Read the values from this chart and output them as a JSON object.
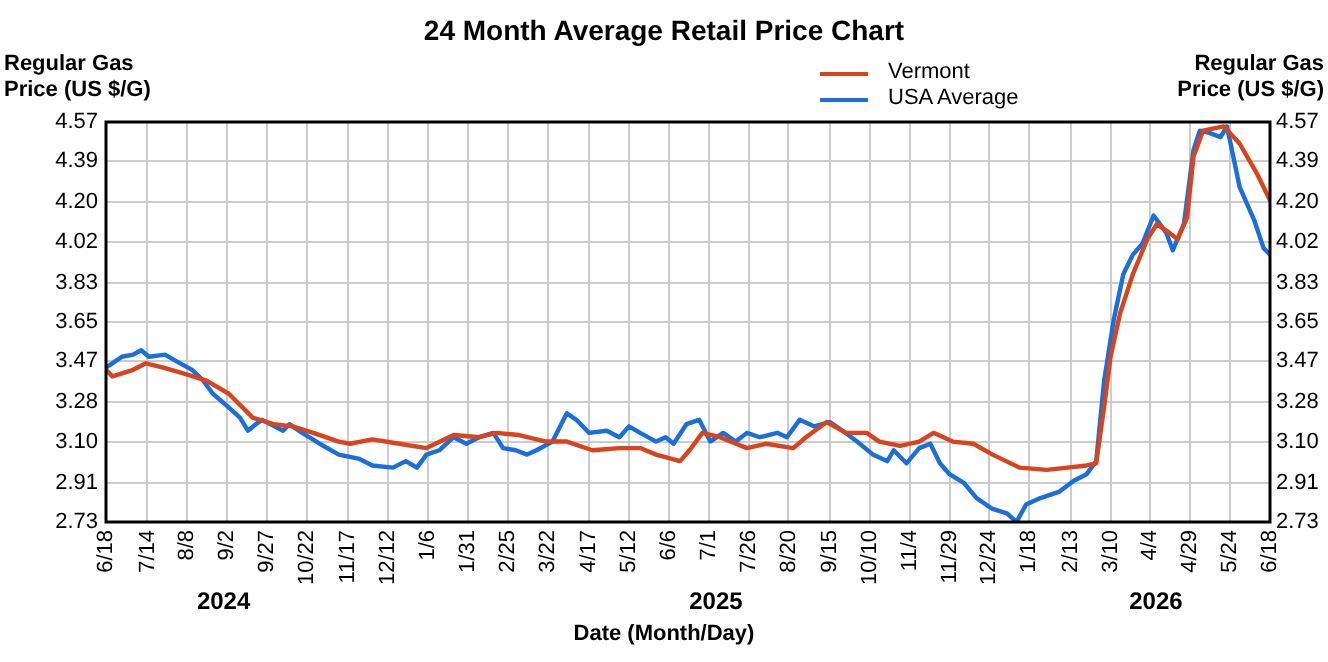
{
  "chart_data": {
    "type": "line",
    "title": "24 Month Average Retail Price Chart",
    "xlabel": "Date (Month/Day)",
    "ylabel": "Regular Gas Price (US $/G)",
    "y2label": "Regular Gas Price (US $/G)",
    "legend": "top",
    "grid": true,
    "marker": "none",
    "line_style": "solid",
    "xlim": [
      "2024-06-18",
      "2026-06-18"
    ],
    "xticks": [
      {
        "value": "2024-06-18",
        "label": "6/18"
      },
      {
        "value": "2024-07-14",
        "label": "7/14"
      },
      {
        "value": "2024-08-08",
        "label": "8/8"
      },
      {
        "value": "2024-09-02",
        "label": "9/2"
      },
      {
        "value": "2024-09-27",
        "label": "9/27"
      },
      {
        "value": "2024-10-22",
        "label": "10/22"
      },
      {
        "value": "2024-11-17",
        "label": "11/17"
      },
      {
        "value": "2024-12-12",
        "label": "12/12"
      },
      {
        "value": "2025-01-06",
        "label": "1/6"
      },
      {
        "value": "2025-01-31",
        "label": "1/31"
      },
      {
        "value": "2025-02-25",
        "label": "2/25"
      },
      {
        "value": "2025-03-22",
        "label": "3/22"
      },
      {
        "value": "2025-04-17",
        "label": "4/17"
      },
      {
        "value": "2025-05-12",
        "label": "5/12"
      },
      {
        "value": "2025-06-06",
        "label": "6/6"
      },
      {
        "value": "2025-07-01",
        "label": "7/1"
      },
      {
        "value": "2025-07-26",
        "label": "7/26"
      },
      {
        "value": "2025-08-20",
        "label": "8/20"
      },
      {
        "value": "2025-09-15",
        "label": "9/15"
      },
      {
        "value": "2025-10-10",
        "label": "10/10"
      },
      {
        "value": "2025-11-04",
        "label": "11/4"
      },
      {
        "value": "2025-11-29",
        "label": "11/29"
      },
      {
        "value": "2025-12-24",
        "label": "12/24"
      },
      {
        "value": "2026-01-18",
        "label": "1/18"
      },
      {
        "value": "2026-02-13",
        "label": "2/13"
      },
      {
        "value": "2026-03-10",
        "label": "3/10"
      },
      {
        "value": "2026-04-04",
        "label": "4/4"
      },
      {
        "value": "2026-04-29",
        "label": "4/29"
      },
      {
        "value": "2026-05-24",
        "label": "5/24"
      },
      {
        "value": "2026-06-18",
        "label": "6/18"
      }
    ],
    "ylim": [
      2.73,
      4.57
    ],
    "yticks": [
      2.73,
      2.91,
      {
        "value": 3.1,
        "label": "3.10"
      },
      3.28,
      3.47,
      3.65,
      3.83,
      4.02,
      {
        "value": 4.2,
        "label": "4.20"
      },
      4.39,
      4.57
    ],
    "y2lim": [
      2.73,
      4.57
    ],
    "y2ticks": [
      2.73,
      2.91,
      {
        "value": 3.1,
        "label": "3.10"
      },
      3.28,
      3.47,
      3.65,
      3.83,
      4.02,
      {
        "value": 4.2,
        "label": "4.20"
      },
      4.39,
      4.57
    ],
    "annotations": [
      "2024",
      "2025",
      "2026"
    ],
    "series": [
      {
        "name": "Vermont",
        "color": "#d9431e",
        "x": [
          "2024-06-18",
          "2024-06-22",
          "2024-07-05",
          "2024-07-13",
          "2024-07-24",
          "2024-08-07",
          "2024-08-20",
          "2024-09-03",
          "2024-09-18",
          "2024-10-01",
          "2024-10-13",
          "2024-10-26",
          "2024-11-11",
          "2024-11-18",
          "2024-12-02",
          "2024-12-19",
          "2025-01-05",
          "2025-01-22",
          "2025-02-07",
          "2025-02-18",
          "2025-03-04",
          "2025-03-21",
          "2025-04-03",
          "2025-04-19",
          "2025-05-06",
          "2025-05-19",
          "2025-05-29",
          "2025-06-13",
          "2025-06-19",
          "2025-06-27",
          "2025-07-08",
          "2025-07-25",
          "2025-08-06",
          "2025-08-23",
          "2025-08-31",
          "2025-09-13",
          "2025-09-25",
          "2025-10-08",
          "2025-10-16",
          "2025-10-29",
          "2025-11-10",
          "2025-11-19",
          "2025-12-01",
          "2025-12-14",
          "2025-12-26",
          "2026-01-12",
          "2026-01-29",
          "2026-02-11",
          "2026-02-23",
          "2026-03-01",
          "2026-03-06",
          "2026-03-10",
          "2026-03-16",
          "2026-03-24",
          "2026-04-02",
          "2026-04-08",
          "2026-04-16",
          "2026-04-21",
          "2026-04-27",
          "2026-05-01",
          "2026-05-07",
          "2026-05-20",
          "2026-05-30",
          "2026-06-10",
          "2026-06-18"
        ],
        "values": [
          3.43,
          3.4,
          3.43,
          3.46,
          3.44,
          3.41,
          3.38,
          3.32,
          3.21,
          3.18,
          3.17,
          3.14,
          3.1,
          3.09,
          3.11,
          3.09,
          3.07,
          3.13,
          3.12,
          3.14,
          3.13,
          3.1,
          3.1,
          3.06,
          3.07,
          3.07,
          3.04,
          3.01,
          3.06,
          3.14,
          3.12,
          3.07,
          3.09,
          3.07,
          3.12,
          3.19,
          3.14,
          3.14,
          3.1,
          3.08,
          3.1,
          3.14,
          3.1,
          3.09,
          3.04,
          2.98,
          2.97,
          2.98,
          2.99,
          3.0,
          3.26,
          3.49,
          3.69,
          3.87,
          4.03,
          4.1,
          4.06,
          4.03,
          4.13,
          4.41,
          4.53,
          4.55,
          4.47,
          4.33,
          4.21
        ]
      },
      {
        "name": "USA Average",
        "color": "#1b6fdb",
        "x": [
          "2024-06-18",
          "2024-06-24",
          "2024-06-28",
          "2024-07-05",
          "2024-07-10",
          "2024-07-15",
          "2024-07-25",
          "2024-08-01",
          "2024-08-11",
          "2024-08-18",
          "2024-08-24",
          "2024-09-01",
          "2024-09-10",
          "2024-09-15",
          "2024-09-20",
          "2024-09-24",
          "2024-10-07",
          "2024-10-11",
          "2024-10-19",
          "2024-10-30",
          "2024-11-11",
          "2024-11-24",
          "2024-12-02",
          "2024-12-15",
          "2024-12-23",
          "2024-12-30",
          "2025-01-05",
          "2025-01-13",
          "2025-01-22",
          "2025-01-30",
          "2025-02-07",
          "2025-02-16",
          "2025-02-22",
          "2025-03-02",
          "2025-03-09",
          "2025-03-15",
          "2025-03-25",
          "2025-04-03",
          "2025-04-09",
          "2025-04-17",
          "2025-04-28",
          "2025-05-06",
          "2025-05-12",
          "2025-05-19",
          "2025-05-29",
          "2025-06-04",
          "2025-06-09",
          "2025-06-17",
          "2025-06-25",
          "2025-07-02",
          "2025-07-10",
          "2025-07-18",
          "2025-07-25",
          "2025-08-02",
          "2025-08-13",
          "2025-08-19",
          "2025-08-27",
          "2025-09-05",
          "2025-09-15",
          "2025-09-23",
          "2025-10-02",
          "2025-10-12",
          "2025-10-21",
          "2025-10-25",
          "2025-11-02",
          "2025-11-10",
          "2025-11-17",
          "2025-11-23",
          "2025-11-29",
          "2025-12-08",
          "2025-12-16",
          "2025-12-26",
          "2026-01-04",
          "2026-01-10",
          "2026-01-16",
          "2026-01-25",
          "2026-02-06",
          "2026-02-15",
          "2026-02-23",
          "2026-03-01",
          "2026-03-06",
          "2026-03-12",
          "2026-03-18",
          "2026-03-24",
          "2026-03-30",
          "2026-04-06",
          "2026-04-14",
          "2026-04-18",
          "2026-04-25",
          "2026-05-01",
          "2026-05-05",
          "2026-05-11",
          "2026-05-18",
          "2026-05-22",
          "2026-05-30",
          "2026-06-08",
          "2026-06-14",
          "2026-06-18"
        ],
        "values": [
          3.44,
          3.47,
          3.49,
          3.5,
          3.52,
          3.49,
          3.5,
          3.47,
          3.43,
          3.38,
          3.32,
          3.27,
          3.21,
          3.15,
          3.18,
          3.2,
          3.15,
          3.18,
          3.14,
          3.09,
          3.04,
          3.02,
          2.99,
          2.98,
          3.01,
          2.98,
          3.04,
          3.06,
          3.12,
          3.09,
          3.12,
          3.14,
          3.07,
          3.06,
          3.04,
          3.06,
          3.1,
          3.23,
          3.2,
          3.14,
          3.15,
          3.12,
          3.17,
          3.14,
          3.1,
          3.12,
          3.09,
          3.18,
          3.2,
          3.1,
          3.14,
          3.1,
          3.14,
          3.12,
          3.14,
          3.12,
          3.2,
          3.17,
          3.19,
          3.15,
          3.1,
          3.04,
          3.01,
          3.06,
          3.0,
          3.07,
          3.09,
          3.0,
          2.95,
          2.91,
          2.84,
          2.79,
          2.77,
          2.73,
          2.81,
          2.84,
          2.87,
          2.92,
          2.95,
          3.01,
          3.38,
          3.66,
          3.87,
          3.96,
          4.01,
          4.14,
          4.06,
          3.98,
          4.1,
          4.44,
          4.53,
          4.52,
          4.5,
          4.55,
          4.27,
          4.12,
          3.99,
          3.96
        ]
      }
    ]
  }
}
